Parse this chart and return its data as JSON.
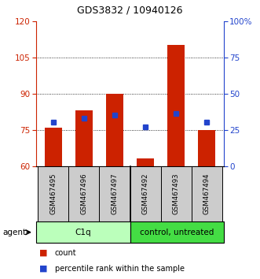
{
  "title": "GDS3832 / 10940126",
  "samples": [
    "GSM467495",
    "GSM467496",
    "GSM467497",
    "GSM467492",
    "GSM467493",
    "GSM467494"
  ],
  "count_values": [
    76,
    83,
    90,
    63,
    110,
    75
  ],
  "percentile_values": [
    30,
    33,
    35,
    27,
    36,
    30
  ],
  "count_base": 60,
  "ylim_left": [
    60,
    120
  ],
  "ylim_right": [
    0,
    100
  ],
  "left_ticks": [
    60,
    75,
    90,
    105,
    120
  ],
  "right_ticks": [
    0,
    25,
    50,
    75,
    100
  ],
  "right_tick_labels": [
    "0",
    "25",
    "50",
    "75",
    "100%"
  ],
  "bar_color": "#cc2200",
  "dot_color": "#2244cc",
  "bg_color": "#ffffff",
  "sample_bg": "#cccccc",
  "left_tick_color": "#cc2200",
  "right_tick_color": "#2244cc",
  "group1_color": "#bbffbb",
  "group2_color": "#44dd44",
  "group1_label": "C1q",
  "group2_label": "control, untreated",
  "agent_label": "agent",
  "legend_count": "count",
  "legend_pct": "percentile rank within the sample",
  "grid_vals": [
    75,
    90,
    105
  ]
}
